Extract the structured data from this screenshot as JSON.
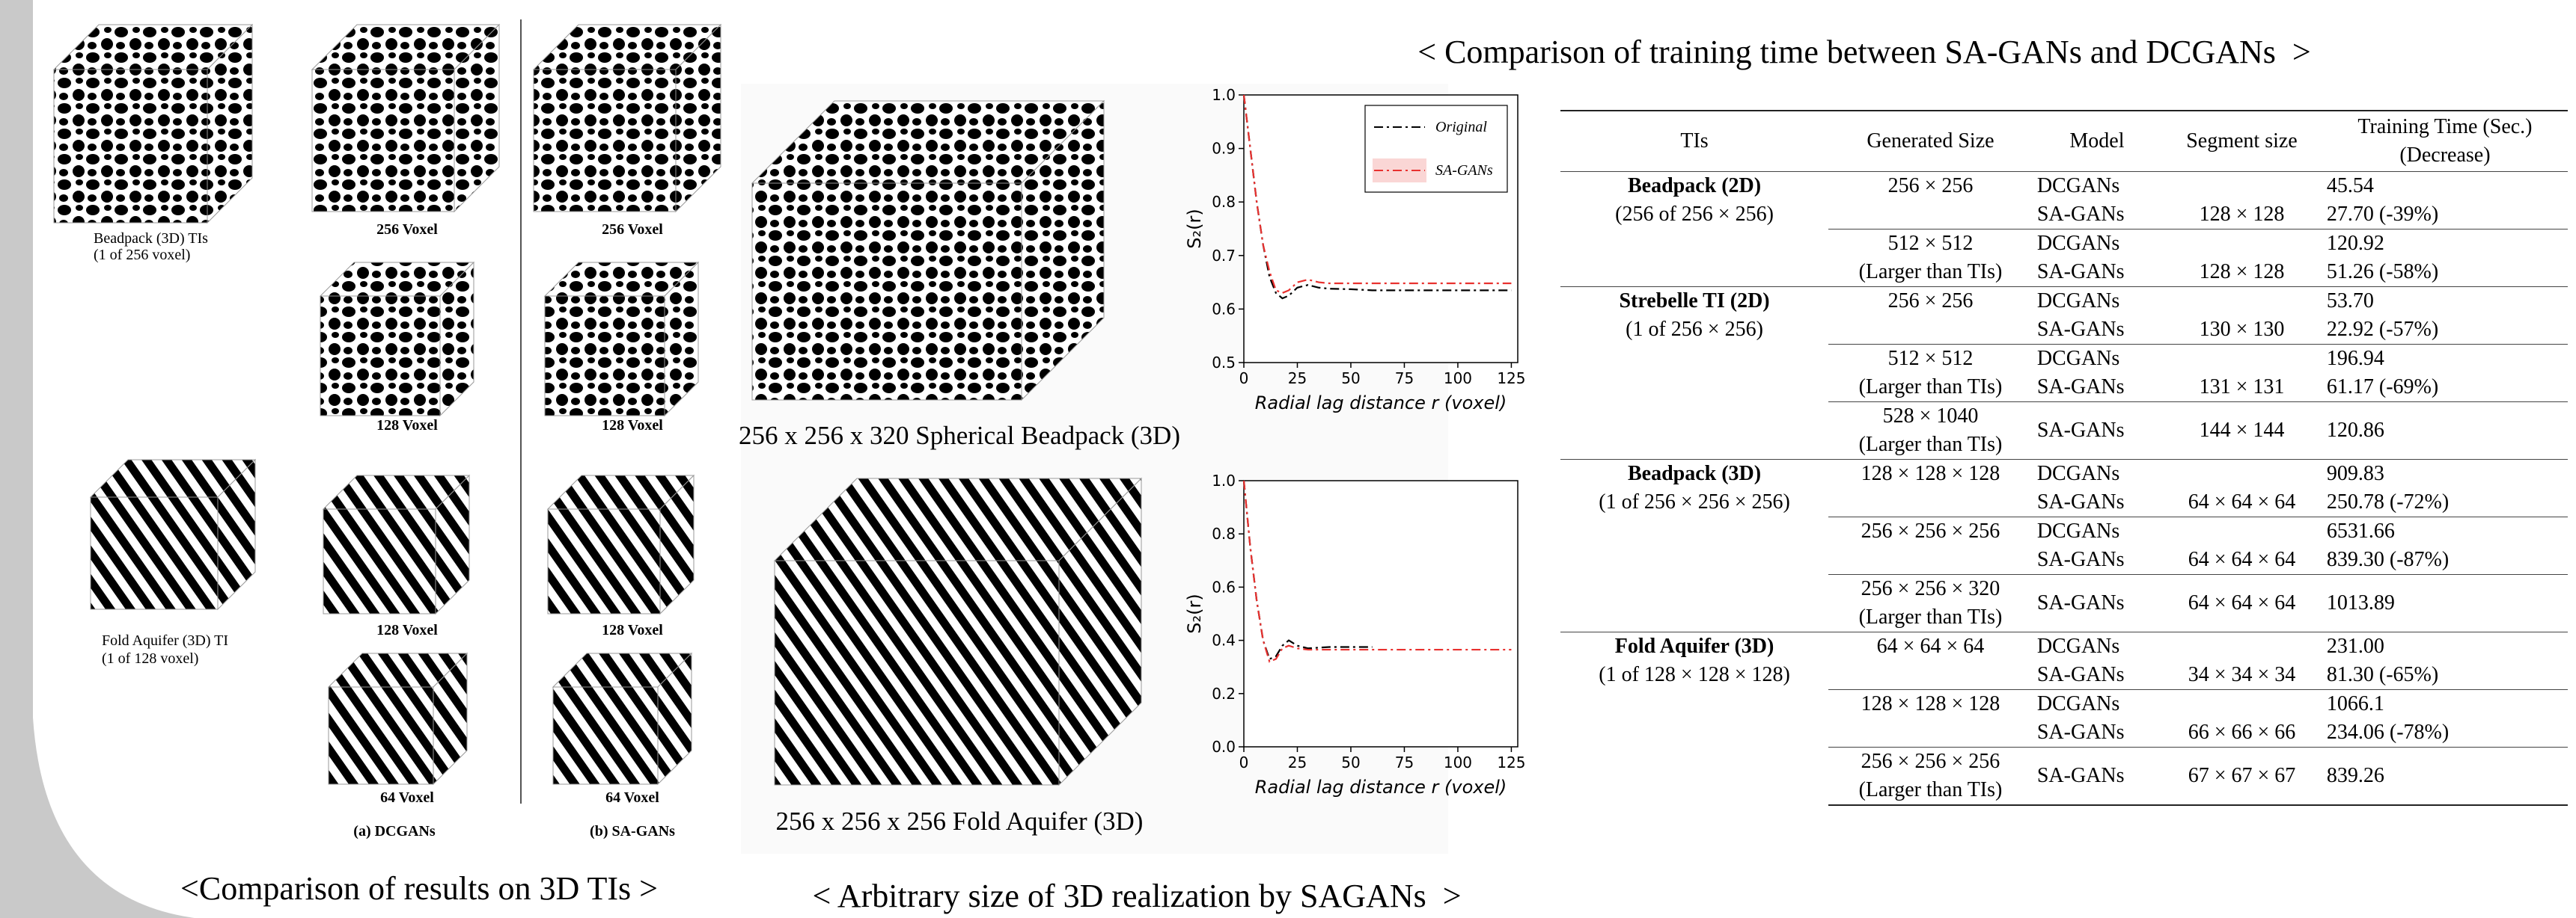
{
  "left": {
    "ti_labels": [
      [
        "Beadpack (3D) TIs",
        "(1 of 256 voxel)"
      ],
      [
        "Fold Aquifer (3D) TI",
        "(1 of 128 voxel)"
      ]
    ],
    "dcgans_sizes": [
      "256 Voxel",
      "128 Voxel",
      "128 Voxel",
      "64 Voxel"
    ],
    "sagans_sizes": [
      "256 Voxel",
      "128 Voxel",
      "128 Voxel",
      "64 Voxel"
    ],
    "columns": [
      "(a) DCGANs",
      "(b) SA-GANs"
    ],
    "caption": "<Comparison of results on 3D TIs >"
  },
  "middle": {
    "caption": "< Arbitrary size of 3D realization by SAGANs  >"
  },
  "chart_data": [
    {
      "type": "line",
      "caption": "256 x 256 x 320 Spherical Beadpack (3D)",
      "xlabel": "Radial lag distance r (voxel)",
      "ylabel": "S₂(r)",
      "xlim": [
        0,
        128
      ],
      "xticks": [
        0,
        25,
        50,
        75,
        100,
        125
      ],
      "ylim": [
        0.5,
        1.0
      ],
      "yticks": [
        0.5,
        0.6,
        0.7,
        0.8,
        0.9,
        {
          "value": 1.0,
          "label": "1.0"
        }
      ],
      "x": [
        0,
        3,
        6,
        9,
        12,
        15,
        18,
        21,
        25,
        30,
        35,
        40,
        50,
        60,
        75,
        100,
        125
      ],
      "series": [
        {
          "name": "Original",
          "color": "#000000",
          "values": [
            1.0,
            0.9,
            0.8,
            0.72,
            0.66,
            0.63,
            0.62,
            0.625,
            0.64,
            0.645,
            0.64,
            0.638,
            0.637,
            0.635,
            0.635,
            0.635,
            0.635
          ]
        },
        {
          "name": "SA-GANs",
          "color": "#e8312f",
          "values": [
            1.0,
            0.9,
            0.8,
            0.72,
            0.67,
            0.635,
            0.63,
            0.635,
            0.65,
            0.655,
            0.65,
            0.648,
            0.648,
            0.648,
            0.648,
            0.648,
            0.648
          ]
        }
      ],
      "legend": "upper right"
    },
    {
      "type": "line",
      "caption": "256 x 256 x 256 Fold Aquifer (3D)",
      "xlabel": "Radial lag distance r (voxel)",
      "ylabel": "S₂(r)",
      "xlim": [
        0,
        128
      ],
      "xticks": [
        0,
        25,
        50,
        75,
        100,
        125
      ],
      "ylim": [
        0.0,
        1.0
      ],
      "yticks": [
        {
          "value": 0.0,
          "label": "0.0"
        },
        0.2,
        0.4,
        0.6,
        0.8,
        {
          "value": 1.0,
          "label": "1.0"
        }
      ],
      "x": [
        0,
        3,
        6,
        9,
        12,
        15,
        18,
        21,
        25,
        30,
        40,
        50,
        60,
        75,
        100,
        125
      ],
      "series": [
        {
          "color": "#000000",
          "values": [
            1.0,
            0.75,
            0.55,
            0.4,
            0.33,
            0.34,
            0.38,
            0.4,
            0.38,
            0.37,
            0.375,
            0.375,
            0.375,
            null,
            null,
            null
          ]
        },
        {
          "color": "#e8312f",
          "values": [
            1.0,
            0.75,
            0.55,
            0.4,
            0.32,
            0.33,
            0.37,
            0.38,
            0.37,
            0.365,
            0.365,
            0.365,
            0.365,
            0.365,
            0.365,
            0.365
          ]
        }
      ]
    }
  ],
  "table": {
    "caption": "< Comparison of training time between SA-GANs and DCGANs  >",
    "columns": [
      [
        "TIs"
      ],
      [
        "Generated Size"
      ],
      [
        "Model"
      ],
      [
        "Segment size"
      ],
      [
        "Training Time (Sec.)",
        "(Decrease)"
      ]
    ],
    "groups": [
      {
        "ti": [
          "Beadpack (2D)",
          "(256 of 256 × 256)"
        ],
        "sizes": [
          {
            "size": [
              "256 × 256"
            ],
            "rows": [
              {
                "model": "DCGANs",
                "time": "45.54"
              },
              {
                "model": "SA-GANs",
                "segment": "128 × 128",
                "time": "27.70 (-39%)"
              }
            ]
          },
          {
            "size": [
              "512 × 512",
              "(Larger than TIs)"
            ],
            "rows": [
              {
                "model": "DCGANs",
                "time": "120.92"
              },
              {
                "model": "SA-GANs",
                "segment": "128 × 128",
                "time": "51.26 (-58%)"
              }
            ]
          }
        ]
      },
      {
        "ti": [
          "Strebelle TI (2D)",
          "(1 of 256 × 256)"
        ],
        "sizes": [
          {
            "size": [
              "256 × 256"
            ],
            "rows": [
              {
                "model": "DCGANs",
                "time": "53.70"
              },
              {
                "model": "SA-GANs",
                "segment": "130 × 130",
                "time": "22.92 (-57%)"
              }
            ]
          },
          {
            "size": [
              "512 × 512",
              "(Larger than TIs)"
            ],
            "rows": [
              {
                "model": "DCGANs",
                "time": "196.94"
              },
              {
                "model": "SA-GANs",
                "segment": "131 × 131",
                "time": "61.17 (-69%)"
              }
            ]
          },
          {
            "size": [
              "528 × 1040",
              "(Larger than TIs)"
            ],
            "rows": [
              {
                "model": "SA-GANs",
                "segment": "144 × 144",
                "time": "120.86"
              }
            ]
          }
        ]
      },
      {
        "ti": [
          "Beadpack (3D)",
          "(1 of 256 × 256 × 256)"
        ],
        "sizes": [
          {
            "size": [
              "128 × 128 × 128"
            ],
            "rows": [
              {
                "model": "DCGANs",
                "time": "909.83"
              },
              {
                "model": "SA-GANs",
                "segment": "64 × 64 × 64",
                "time": "250.78 (-72%)"
              }
            ]
          },
          {
            "size": [
              "256 × 256 × 256"
            ],
            "rows": [
              {
                "model": "DCGANs",
                "time": "6531.66"
              },
              {
                "model": "SA-GANs",
                "segment": "64 × 64 × 64",
                "time": "839.30 (-87%)"
              }
            ]
          },
          {
            "size": [
              "256 × 256 × 320",
              "(Larger than TIs)"
            ],
            "rows": [
              {
                "model": "SA-GANs",
                "segment": "64 × 64 × 64",
                "time": "1013.89"
              }
            ]
          }
        ]
      },
      {
        "ti": [
          "Fold Aquifer (3D)",
          "(1 of 128 × 128 × 128)"
        ],
        "sizes": [
          {
            "size": [
              "64 × 64 × 64"
            ],
            "rows": [
              {
                "model": "DCGANs",
                "time": "231.00"
              },
              {
                "model": "SA-GANs",
                "segment": "34 × 34 × 34",
                "time": "81.30 (-65%)"
              }
            ]
          },
          {
            "size": [
              "128 × 128 × 128"
            ],
            "rows": [
              {
                "model": "DCGANs",
                "time": "1066.1"
              },
              {
                "model": "SA-GANs",
                "segment": "66 × 66 × 66",
                "time": "234.06 (-78%)"
              }
            ]
          },
          {
            "size": [
              "256 × 256 × 256",
              "(Larger than TIs)"
            ],
            "rows": [
              {
                "model": "SA-GANs",
                "segment": "67 × 67 × 67",
                "time": "839.26"
              }
            ]
          }
        ]
      }
    ]
  }
}
